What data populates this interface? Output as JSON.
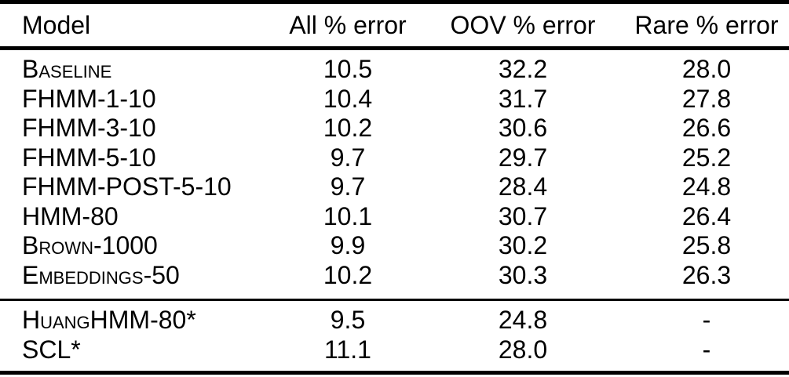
{
  "meta": {
    "ink_color": "#000000",
    "background_color": "#ffffff"
  },
  "table": {
    "columns": [
      {
        "label": "Model"
      },
      {
        "label": "All % error"
      },
      {
        "label": "OOV % error"
      },
      {
        "label": "Rare % error"
      }
    ],
    "section1": {
      "rows": [
        {
          "model": "Baseline",
          "all": "10.5",
          "oov": "32.2",
          "rare": "28.0"
        },
        {
          "model": "FHMM-1-10",
          "all": "10.4",
          "oov": "31.7",
          "rare": "27.8"
        },
        {
          "model": "FHMM-3-10",
          "all": "10.2",
          "oov": "30.6",
          "rare": "26.6"
        },
        {
          "model": "FHMM-5-10",
          "all": "9.7",
          "oov": "29.7",
          "rare": "25.2"
        },
        {
          "model": "FHMM-POST-5-10",
          "all": "9.7",
          "oov": "28.4",
          "rare": "24.8"
        },
        {
          "model": "HMM-80",
          "all": "10.1",
          "oov": "30.7",
          "rare": "26.4"
        },
        {
          "model": "Brown-1000",
          "all": "9.9",
          "oov": "30.2",
          "rare": "25.8"
        },
        {
          "model": "Embeddings-50",
          "all": "10.2",
          "oov": "30.3",
          "rare": "26.3"
        }
      ]
    },
    "section2": {
      "rows": [
        {
          "model": "HuangHMM-80*",
          "all": "9.5",
          "oov": "24.8",
          "rare": "-"
        },
        {
          "model": "SCL*",
          "all": "11.1",
          "oov": "28.0",
          "rare": "-"
        }
      ]
    }
  }
}
